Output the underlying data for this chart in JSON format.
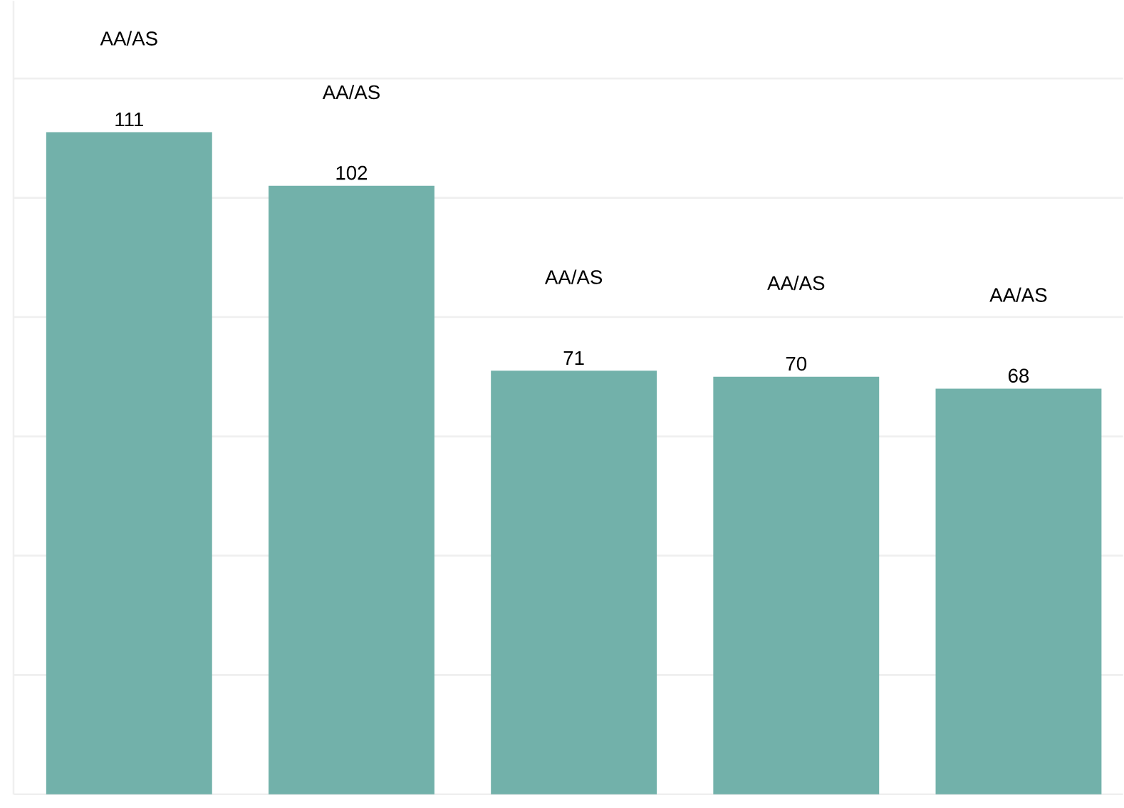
{
  "chart_data": {
    "type": "bar",
    "categories": [
      null,
      null,
      null,
      null,
      null
    ],
    "values": [
      111,
      102,
      71,
      70,
      68
    ],
    "color": "#72b1aa",
    "data_labels": true,
    "annotations": [
      "AA/AS",
      "AA/AS",
      "AA/AS",
      "AA/AS",
      "AA/AS"
    ],
    "ylim": [
      0,
      133
    ],
    "yticks": [
      0,
      20,
      40,
      60,
      80,
      100,
      120
    ],
    "grid": "y",
    "tick_labels": false
  }
}
